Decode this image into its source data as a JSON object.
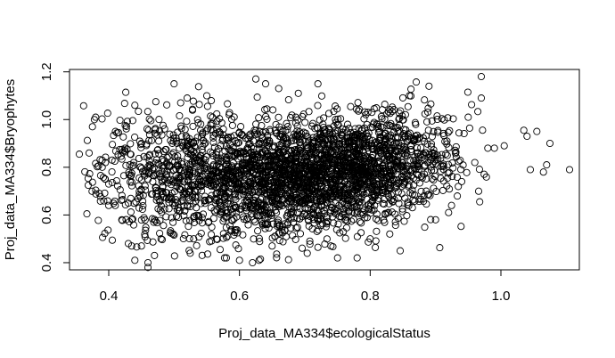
{
  "chart_data": {
    "type": "scatter",
    "title": "",
    "xlabel": "Proj_data_MA334$ecologicalStatus",
    "ylabel": "Proj_data_MA334$Bryophytes",
    "xlim": [
      0.34,
      1.12
    ],
    "ylim": [
      0.37,
      1.21
    ],
    "xticks": [
      0.4,
      0.6,
      0.8,
      1.0
    ],
    "xtick_labels": [
      "0.4",
      "0.6",
      "0.8",
      "1.0"
    ],
    "yticks": [
      0.4,
      0.6,
      0.8,
      1.0,
      1.2
    ],
    "ytick_labels": [
      "0.4",
      "0.6",
      "0.8",
      "1.0",
      "1.2"
    ],
    "marker": "open-circle",
    "marker_color": "#000000",
    "grid": false,
    "legend": "none",
    "point_count_approx": 2800,
    "points": [
      [
        0.355,
        0.855
      ],
      [
        0.37,
        0.86
      ],
      [
        0.375,
        0.97
      ],
      [
        0.378,
        1.0
      ],
      [
        0.39,
        0.8
      ],
      [
        0.395,
        0.82
      ],
      [
        0.4,
        0.64
      ],
      [
        0.4,
        0.73
      ],
      [
        0.405,
        0.83
      ],
      [
        0.41,
        0.64
      ],
      [
        0.42,
        0.58
      ],
      [
        0.43,
        0.48
      ],
      [
        0.435,
        0.47
      ],
      [
        0.44,
        0.41
      ],
      [
        0.45,
        0.47
      ],
      [
        0.46,
        0.4
      ],
      [
        0.46,
        0.38
      ],
      [
        0.47,
        0.43
      ],
      [
        0.48,
        0.5
      ],
      [
        0.43,
        0.65
      ],
      [
        0.44,
        1.06
      ],
      [
        0.425,
        0.88
      ],
      [
        0.45,
        0.9
      ],
      [
        0.46,
        0.75
      ],
      [
        0.38,
        1.01
      ],
      [
        0.5,
        1.15
      ],
      [
        0.51,
        1.07
      ],
      [
        0.52,
        1.09
      ],
      [
        0.53,
        0.5
      ],
      [
        0.55,
        1.1
      ],
      [
        0.58,
        0.42
      ],
      [
        0.6,
        0.41
      ],
      [
        0.62,
        0.4
      ],
      [
        0.63,
        0.41
      ],
      [
        0.65,
        0.47
      ],
      [
        0.625,
        1.17
      ],
      [
        0.64,
        1.15
      ],
      [
        0.66,
        1.13
      ],
      [
        0.69,
        1.11
      ],
      [
        0.72,
        1.15
      ],
      [
        0.74,
        0.47
      ],
      [
        0.75,
        0.42
      ],
      [
        0.78,
        0.42
      ],
      [
        0.8,
        0.5
      ],
      [
        0.83,
        0.52
      ],
      [
        0.86,
        1.1
      ],
      [
        0.89,
        1.14
      ],
      [
        0.9,
        0.58
      ],
      [
        0.92,
        0.61
      ],
      [
        0.94,
        0.74
      ],
      [
        0.95,
        1.01
      ],
      [
        0.96,
        0.82
      ],
      [
        0.97,
        1.18
      ],
      [
        0.97,
        1.09
      ],
      [
        0.98,
        0.88
      ],
      [
        0.99,
        0.88
      ],
      [
        1.005,
        0.89
      ],
      [
        1.035,
        0.955
      ],
      [
        1.04,
        0.93
      ],
      [
        1.045,
        0.79
      ],
      [
        1.055,
        0.95
      ],
      [
        1.065,
        0.78
      ],
      [
        1.07,
        0.81
      ],
      [
        1.075,
        0.9
      ],
      [
        1.105,
        0.79
      ]
    ],
    "clusters": [
      {
        "cx": 0.73,
        "cy": 0.78,
        "sx": 0.085,
        "sy": 0.11,
        "n": 1700
      },
      {
        "cx": 0.62,
        "cy": 0.72,
        "sx": 0.08,
        "sy": 0.13,
        "n": 650
      },
      {
        "cx": 0.52,
        "cy": 0.78,
        "sx": 0.06,
        "sy": 0.14,
        "n": 320
      },
      {
        "cx": 0.84,
        "cy": 0.86,
        "sx": 0.06,
        "sy": 0.09,
        "n": 300
      },
      {
        "cx": 0.43,
        "cy": 0.78,
        "sx": 0.035,
        "sy": 0.12,
        "n": 120
      }
    ]
  }
}
